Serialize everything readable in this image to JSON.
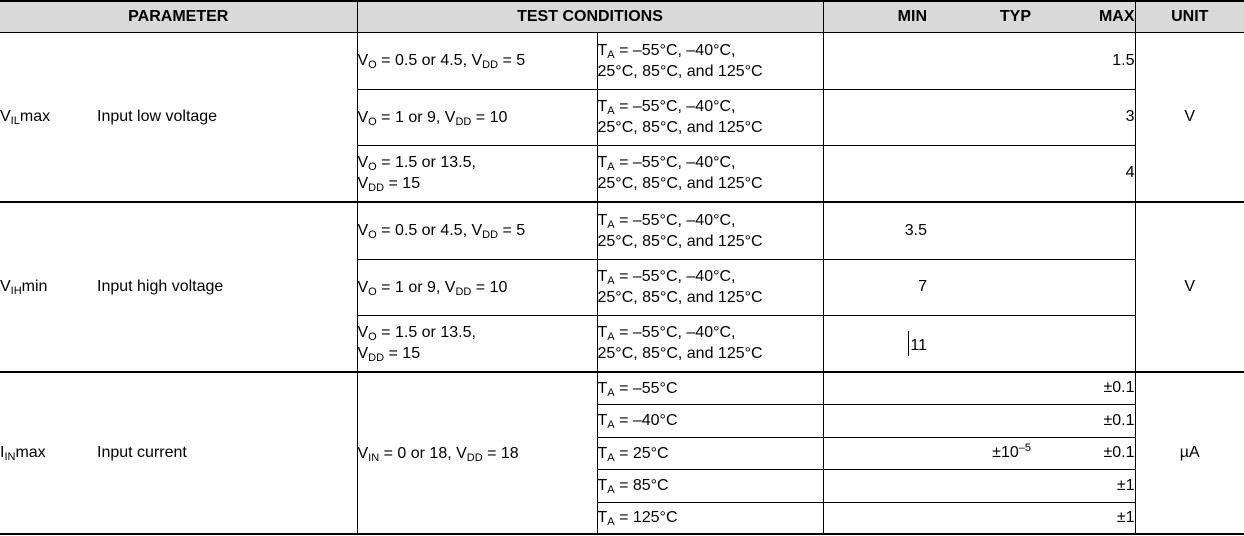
{
  "colors": {
    "header_bg": "#d9d9d9",
    "border": "#000000",
    "text": "#000000"
  },
  "header": {
    "parameter": "PARAMETER",
    "test_conditions": "TEST CONDITIONS",
    "min": "MIN",
    "typ": "TYP",
    "max": "MAX",
    "unit": "UNIT"
  },
  "sections": [
    {
      "symbol": [
        "V",
        {
          "sub": "IL"
        },
        "max"
      ],
      "name": "Input low voltage",
      "unit": "V",
      "rows": [
        {
          "cond1": [
            "V",
            {
              "sub": "O"
            },
            " = 0.5 or 4.5, V",
            {
              "sub": "DD"
            },
            " = 5"
          ],
          "cond2": [
            "T",
            {
              "sub": "A"
            },
            " = –55°C, –40°C,",
            {
              "br": true
            },
            "25°C, 85°C, and 125°C"
          ],
          "min": [],
          "typ": [],
          "max": [
            "1.5"
          ]
        },
        {
          "cond1": [
            "V",
            {
              "sub": "O"
            },
            " = 1 or 9, V",
            {
              "sub": "DD"
            },
            " = 10"
          ],
          "cond2": [
            "T",
            {
              "sub": "A"
            },
            " = –55°C, –40°C,",
            {
              "br": true
            },
            "25°C, 85°C, and 125°C"
          ],
          "min": [],
          "typ": [],
          "max": [
            "3"
          ]
        },
        {
          "cond1": [
            "V",
            {
              "sub": "O"
            },
            " = 1.5 or 13.5,",
            {
              "br": true
            },
            "V",
            {
              "sub": "DD"
            },
            " = 15"
          ],
          "cond2": [
            "T",
            {
              "sub": "A"
            },
            " = –55°C, –40°C,",
            {
              "br": true
            },
            "25°C, 85°C, and 125°C"
          ],
          "min": [],
          "typ": [],
          "max": [
            "4"
          ]
        }
      ]
    },
    {
      "symbol": [
        "V",
        {
          "sub": "IH"
        },
        "min"
      ],
      "name": "Input high voltage",
      "unit": "V",
      "rows": [
        {
          "cond1": [
            "V",
            {
              "sub": "O"
            },
            " = 0.5 or 4.5, V",
            {
              "sub": "DD"
            },
            " = 5"
          ],
          "cond2": [
            "T",
            {
              "sub": "A"
            },
            " = –55°C, –40°C,",
            {
              "br": true
            },
            "25°C, 85°C, and 125°C"
          ],
          "min": [
            "3.5"
          ],
          "typ": [],
          "max": []
        },
        {
          "cond1": [
            "V",
            {
              "sub": "O"
            },
            " = 1 or 9, V",
            {
              "sub": "DD"
            },
            " = 10"
          ],
          "cond2": [
            "T",
            {
              "sub": "A"
            },
            " = –55°C, –40°C,",
            {
              "br": true
            },
            "25°C, 85°C, and 125°C"
          ],
          "min": [
            "7"
          ],
          "typ": [],
          "max": []
        },
        {
          "cond1": [
            "V",
            {
              "sub": "O"
            },
            " = 1.5 or 13.5,",
            {
              "br": true
            },
            "V",
            {
              "sub": "DD"
            },
            " = 15"
          ],
          "cond2": [
            "T",
            {
              "sub": "A"
            },
            " = –55°C, –40°C,",
            {
              "br": true
            },
            "25°C, 85°C, and 125°C"
          ],
          "min": [
            {
              "caret": true
            },
            "11"
          ],
          "typ": [],
          "max": []
        }
      ]
    },
    {
      "symbol": [
        "I",
        {
          "sub": "IN"
        },
        "max"
      ],
      "name": "Input current",
      "unit": "µA",
      "cond1": [
        "V",
        {
          "sub": "IN"
        },
        " = 0 or 18, V",
        {
          "sub": "DD"
        },
        " = 18"
      ],
      "rows": [
        {
          "cond2": [
            "T",
            {
              "sub": "A"
            },
            " = –55°C"
          ],
          "min": [],
          "typ": [],
          "max": [
            "±0.1"
          ]
        },
        {
          "cond2": [
            "T",
            {
              "sub": "A"
            },
            " = –40°C"
          ],
          "min": [],
          "typ": [],
          "max": [
            "±0.1"
          ]
        },
        {
          "cond2": [
            "T",
            {
              "sub": "A"
            },
            " = 25°C"
          ],
          "min": [],
          "typ": [
            "±10",
            {
              "sup": "–5"
            }
          ],
          "max": [
            "±0.1"
          ]
        },
        {
          "cond2": [
            "T",
            {
              "sub": "A"
            },
            " = 85°C"
          ],
          "min": [],
          "typ": [],
          "max": [
            "±1"
          ]
        },
        {
          "cond2": [
            "T",
            {
              "sub": "A"
            },
            " = 125°C"
          ],
          "min": [],
          "typ": [],
          "max": [
            "±1"
          ]
        }
      ]
    }
  ]
}
